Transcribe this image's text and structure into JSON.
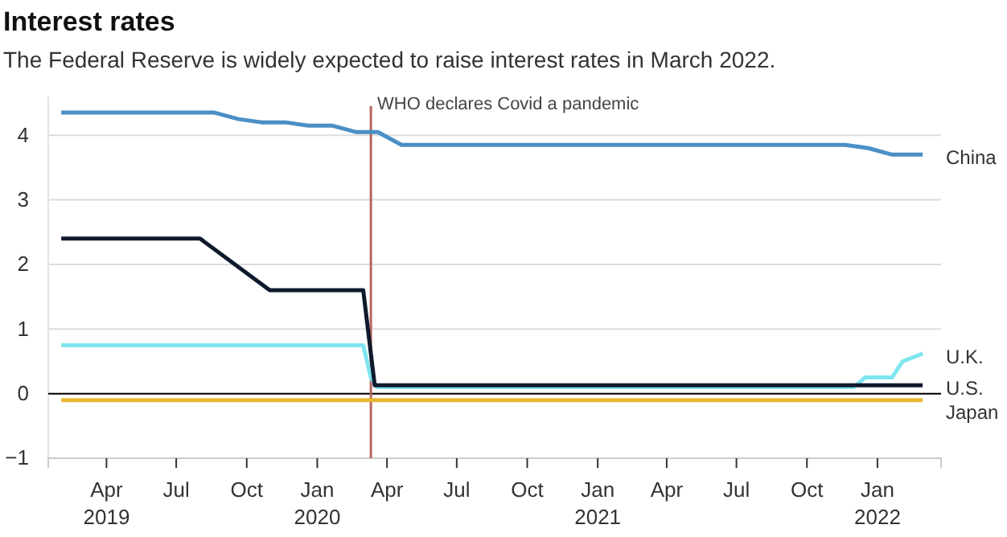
{
  "chart_data": {
    "type": "line",
    "title": "Interest rates",
    "subtitle": "The Federal Reserve is widely expected to raise interest rates in March 2022.",
    "xlim": [
      "2019-01-15",
      "2022-03-25"
    ],
    "ylim": [
      -1,
      4.6
    ],
    "xticks": [
      {
        "value": "2019-04-01",
        "label": "Apr\n2019"
      },
      {
        "value": "2019-07-01",
        "label": "Jul"
      },
      {
        "value": "2019-10-01",
        "label": "Oct"
      },
      {
        "value": "2020-01-01",
        "label": "Jan\n2020"
      },
      {
        "value": "2020-04-01",
        "label": "Apr"
      },
      {
        "value": "2020-07-01",
        "label": "Jul"
      },
      {
        "value": "2020-10-01",
        "label": "Oct"
      },
      {
        "value": "2021-01-01",
        "label": "Jan\n2021"
      },
      {
        "value": "2021-04-01",
        "label": "Apr"
      },
      {
        "value": "2021-07-01",
        "label": "Jul"
      },
      {
        "value": "2021-10-01",
        "label": "Oct"
      },
      {
        "value": "2022-01-01",
        "label": "Jan\n2022"
      }
    ],
    "yticks": [
      -1,
      0,
      1,
      2,
      3,
      4
    ],
    "grid": "y",
    "legend": false,
    "marker": "none",
    "line_style": "solid",
    "series": [
      {
        "name": "China",
        "color": "#4a8fc6",
        "x": [
          "2019-02-01",
          "2019-08-20",
          "2019-09-20",
          "2019-10-20",
          "2019-11-20",
          "2019-12-20",
          "2020-01-20",
          "2020-02-20",
          "2020-03-20",
          "2020-04-20",
          "2021-11-20",
          "2021-12-20",
          "2022-01-20",
          "2022-03-01"
        ],
        "values": [
          4.35,
          4.35,
          4.25,
          4.2,
          4.2,
          4.15,
          4.15,
          4.05,
          4.05,
          3.85,
          3.85,
          3.8,
          3.7,
          3.7
        ]
      },
      {
        "name": "U.K.",
        "color": "#7fe6f0",
        "x": [
          "2019-02-01",
          "2020-03-01",
          "2020-03-11",
          "2020-03-19",
          "2021-12-01",
          "2021-12-16",
          "2022-01-20",
          "2022-02-03",
          "2022-03-01"
        ],
        "values": [
          0.75,
          0.75,
          0.25,
          0.1,
          0.1,
          0.25,
          0.25,
          0.5,
          0.62
        ]
      },
      {
        "name": "U.S.",
        "color": "#0e1a2c",
        "x": [
          "2019-02-01",
          "2019-08-01",
          "2019-10-31",
          "2020-03-01",
          "2020-03-16",
          "2022-03-01"
        ],
        "values": [
          2.4,
          2.4,
          1.6,
          1.6,
          0.13,
          0.13
        ]
      },
      {
        "name": "Japan",
        "color": "#e8b732",
        "x": [
          "2019-02-01",
          "2022-03-01"
        ],
        "values": [
          -0.1,
          -0.1
        ]
      }
    ],
    "ref_lines": [
      {
        "axis": "x",
        "value": "2020-03-11",
        "label": "WHO declares Covid a pandemic",
        "color": "#b5655f"
      }
    ]
  }
}
